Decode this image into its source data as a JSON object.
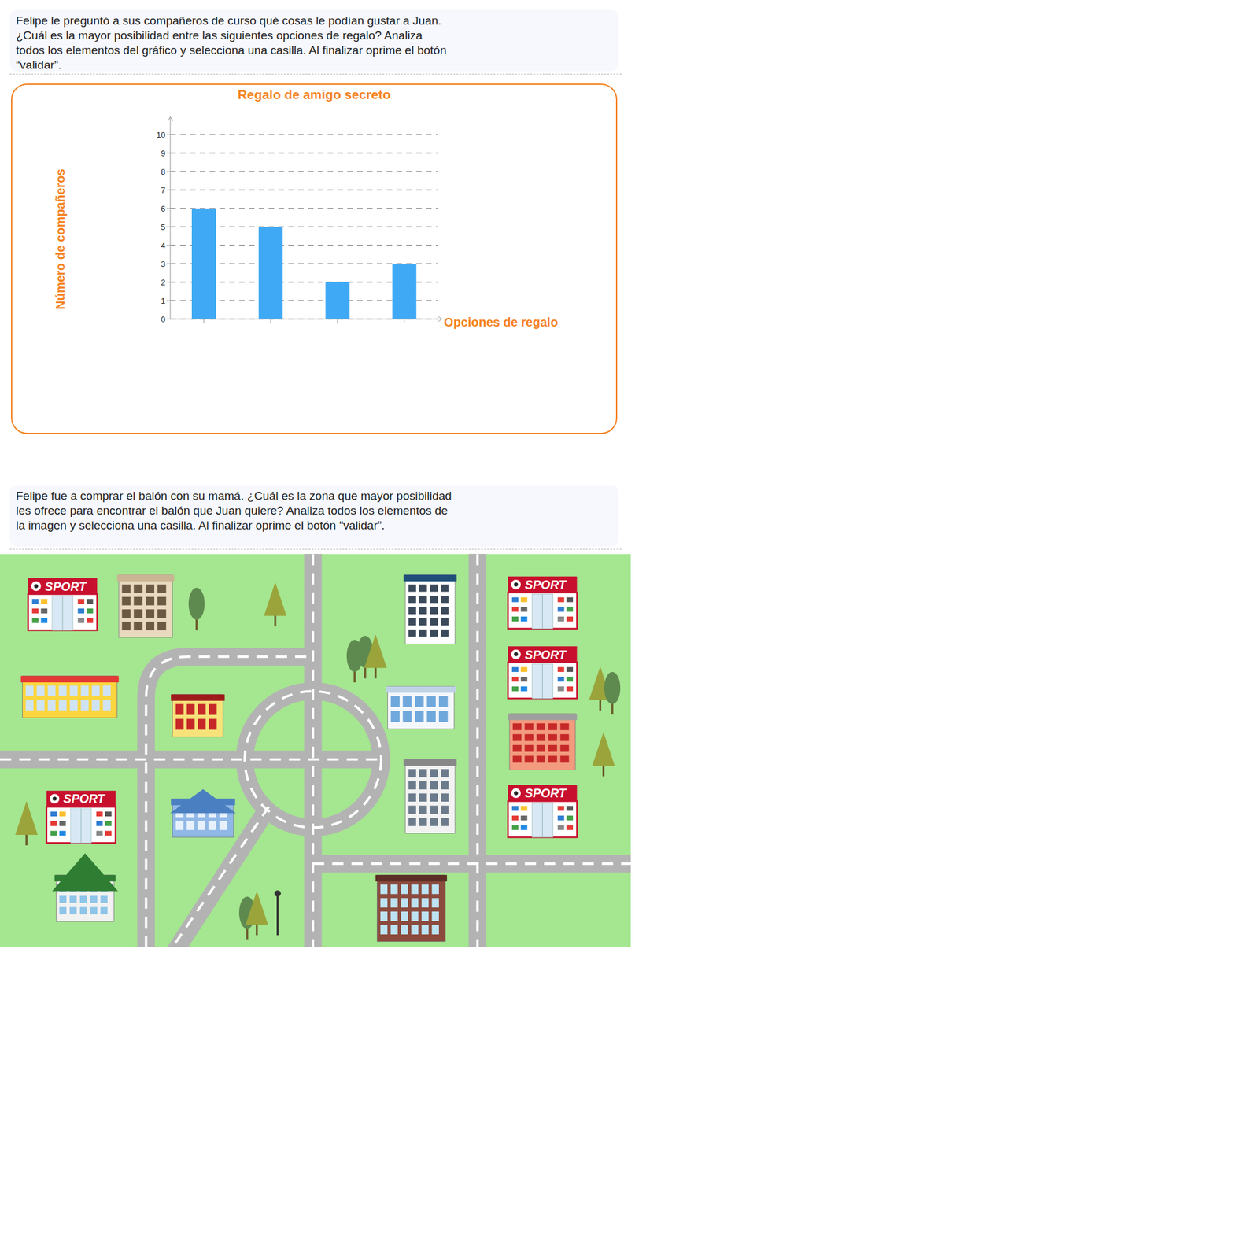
{
  "question_1": "Felipe le preguntó a sus compañeros de curso qué cosas le podían gustar a Juan. ¿Cuál es la mayor posibilidad entre las siguientes opciones de regalo? Analiza todos los elementos del gráfico y selecciona una casilla. Al finalizar oprime el botón “validar”.",
  "chart_data": {
    "type": "bar",
    "title": "Regalo de amigo secreto",
    "x_label": "Opciones de regalo",
    "y_label": "Número de compañeros",
    "categories": [
      null,
      null,
      null,
      null
    ],
    "values": [
      6,
      5,
      2,
      3
    ],
    "color": "#3fa9f5",
    "ylim": [
      0,
      10
    ],
    "yticks": [
      0,
      1,
      2,
      3,
      4,
      5,
      6,
      7,
      8,
      9,
      10
    ],
    "grid": true,
    "tick_labels": "y"
  },
  "question_2": "Felipe fue a comprar el balón con su mamá. ¿Cuál es la zona que mayor posibilidad les ofrece para encontrar el balón que Juan quiere? Analiza todos los elementos de la imagen y selecciona una casilla. Al finalizar oprime el botón “validar”.",
  "map": {
    "store_sign": "SPORT"
  }
}
